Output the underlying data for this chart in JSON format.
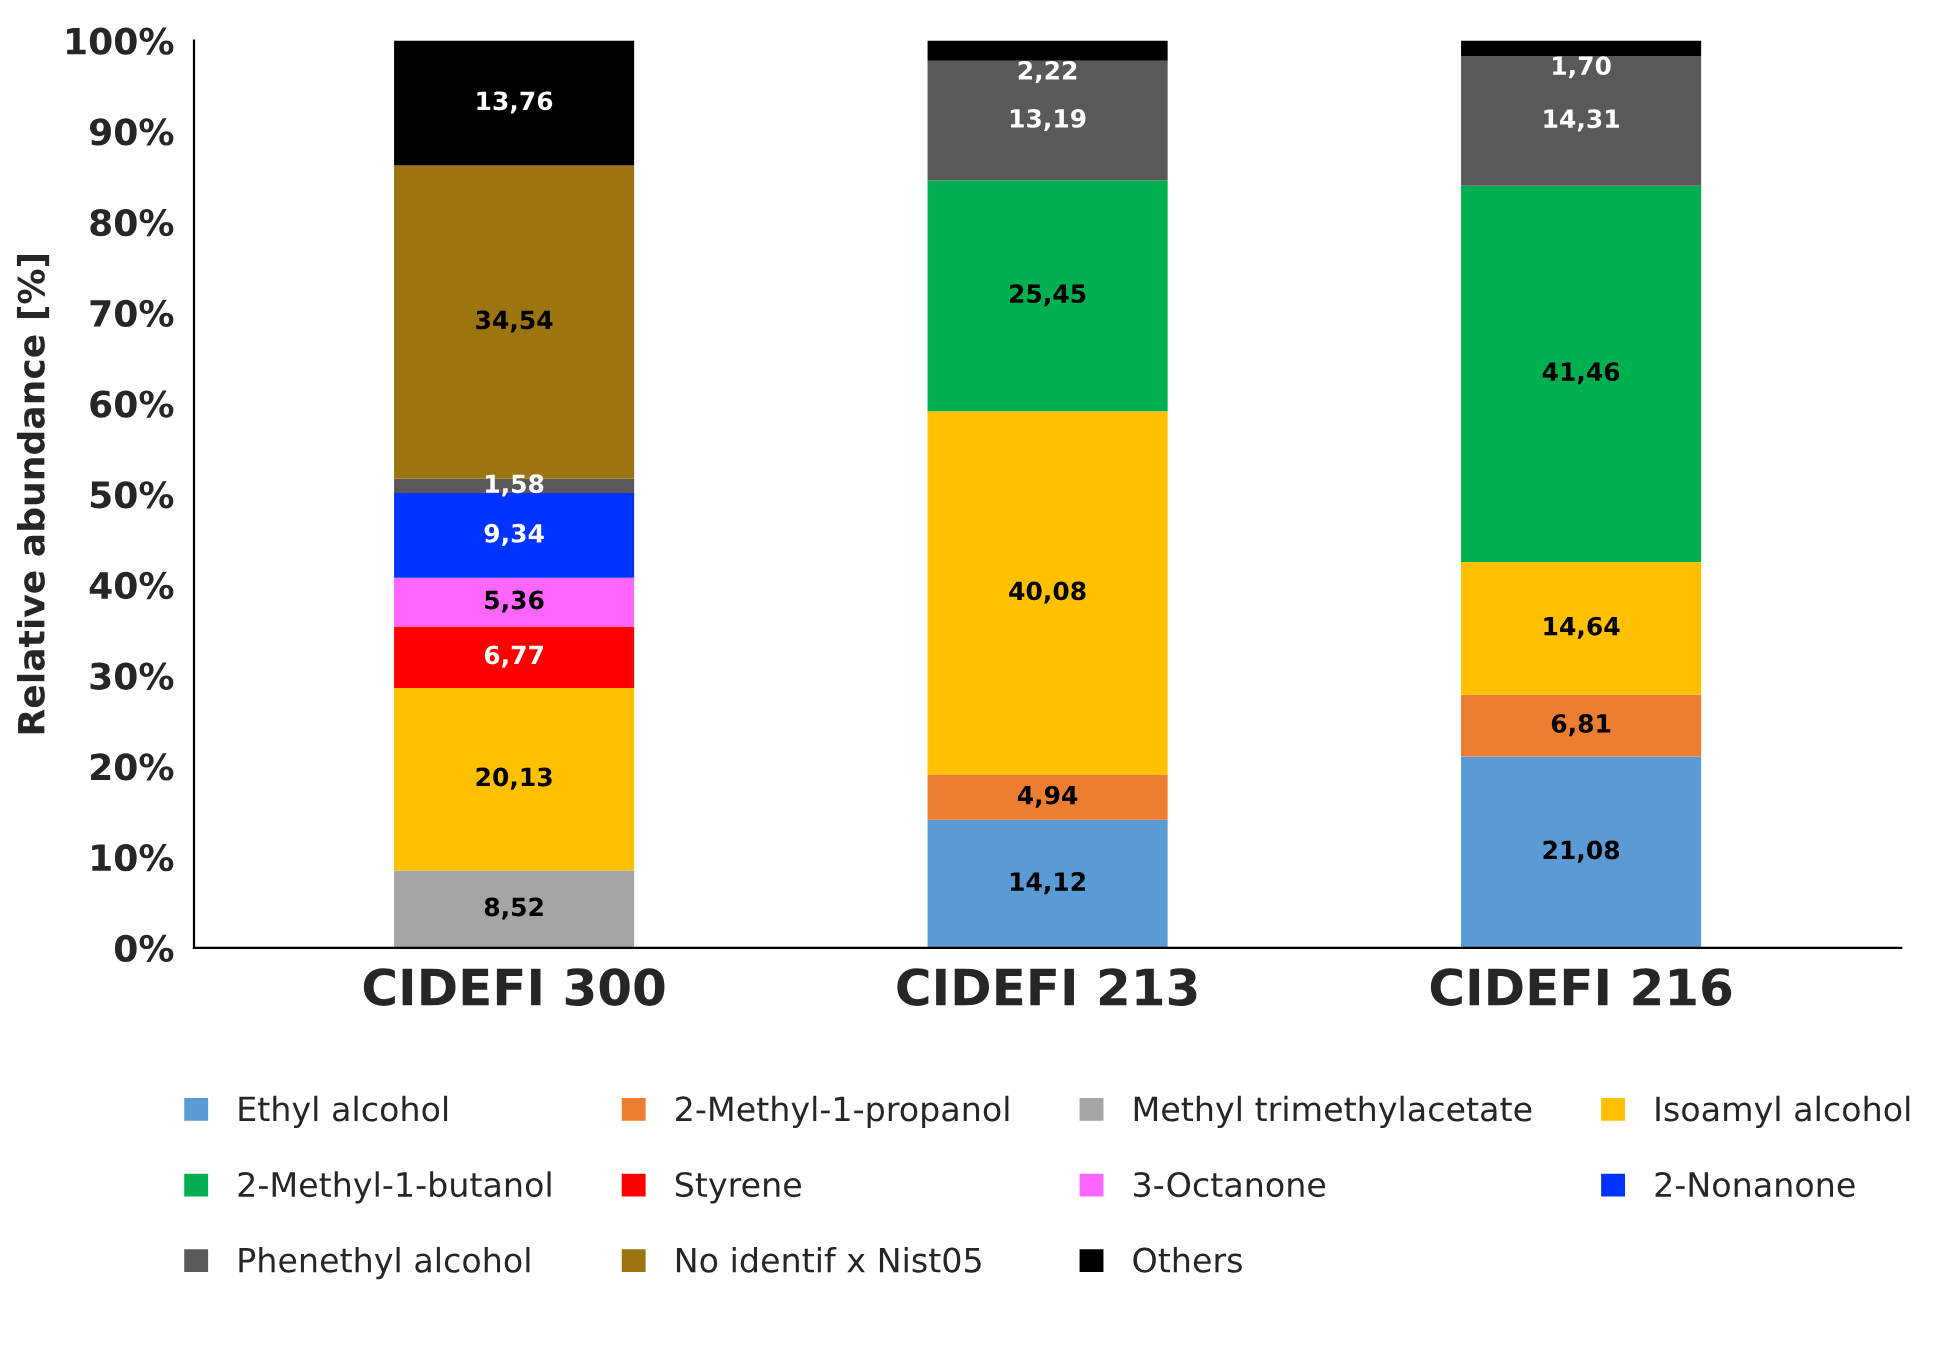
{
  "chart_data": {
    "type": "bar",
    "stacked": true,
    "ylabel": "Relative abundance [%]",
    "categories": [
      "CIDEFI 300",
      "CIDEFI 213",
      "CIDEFI 216"
    ],
    "ylim": [
      0,
      100
    ],
    "yticks": [
      {
        "value": 0,
        "label": "0%"
      },
      {
        "value": 10,
        "label": "10%"
      },
      {
        "value": 20,
        "label": "20%"
      },
      {
        "value": 30,
        "label": "30%"
      },
      {
        "value": 40,
        "label": "40%"
      },
      {
        "value": 50,
        "label": "50%"
      },
      {
        "value": 60,
        "label": "60%"
      },
      {
        "value": 70,
        "label": "70%"
      },
      {
        "value": 80,
        "label": "80%"
      },
      {
        "value": 90,
        "label": "90%"
      },
      {
        "value": 100,
        "label": "100%"
      }
    ],
    "grid": false,
    "legend": "bottom",
    "series": [
      {
        "name": "Ethyl alcohol",
        "color": "#5b9bd5",
        "values": [
          null,
          14.12,
          21.08
        ],
        "value_labels": [
          null,
          "14,12",
          "21,08"
        ]
      },
      {
        "name": "2-Methyl-1-propanol",
        "color": "#ed7d31",
        "values": [
          null,
          4.94,
          6.81
        ],
        "value_labels": [
          null,
          "4,94",
          "6,81"
        ]
      },
      {
        "name": "Methyl trimethylacetate",
        "color": "#a5a5a5",
        "values": [
          8.52,
          null,
          null
        ],
        "value_labels": [
          "8,52",
          null,
          null
        ]
      },
      {
        "name": "Isoamyl alcohol",
        "color": "#ffc000",
        "values": [
          20.13,
          40.08,
          14.64
        ],
        "value_labels": [
          "20,13",
          "40,08",
          "14,64"
        ]
      },
      {
        "name": "2-Methyl-1-butanol",
        "color": "#00b050",
        "values": [
          null,
          25.45,
          41.46
        ],
        "value_labels": [
          null,
          "25,45",
          "41,46"
        ]
      },
      {
        "name": "Styrene",
        "color": "#ff0000",
        "values": [
          6.77,
          null,
          null
        ],
        "value_labels": [
          "6,77",
          null,
          null
        ]
      },
      {
        "name": "3-Octanone",
        "color": "#ff66ff",
        "values": [
          5.36,
          null,
          null
        ],
        "value_labels": [
          "5,36",
          null,
          null
        ]
      },
      {
        "name": "2-Nonanone",
        "color": "#0033ff",
        "values": [
          9.34,
          null,
          null
        ],
        "value_labels": [
          "9,34",
          null,
          null
        ]
      },
      {
        "name": "Phenethyl alcohol",
        "color": "#595959",
        "values": [
          1.58,
          13.19,
          14.31
        ],
        "value_labels": [
          "1,58",
          "13,19",
          "14,31"
        ]
      },
      {
        "name": "No identif x Nist05",
        "color": "#9c7410",
        "values": [
          34.54,
          null,
          null
        ],
        "value_labels": [
          "34,54",
          null,
          null
        ]
      },
      {
        "name": "Others",
        "color": "#000000",
        "values": [
          13.76,
          2.22,
          1.7
        ],
        "value_labels": [
          "13,76",
          "2,22",
          "1,70"
        ]
      }
    ]
  }
}
